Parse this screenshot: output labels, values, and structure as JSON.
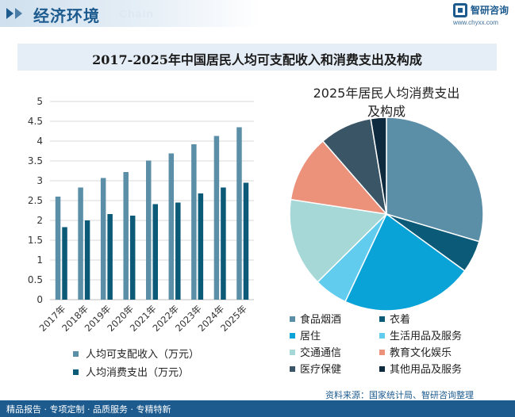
{
  "header": {
    "title": "经济环境",
    "subtitle": "Chain",
    "logo_name": "智研咨询",
    "logo_url": "www.chyxx.com"
  },
  "main_title": "2017-2025年中国居民人均可支配收入和消费支出及构成",
  "footer": {
    "slogan": "精品报告 · 专项定制 · 品质服务 · 专精特新",
    "source": "资料来源：国家统计局、智研咨询整理"
  },
  "colors": {
    "brand": "#1d5b8f",
    "income": "#5b8fa8",
    "expense": "#0b5a78"
  },
  "chart_data": [
    {
      "type": "bar",
      "title": "",
      "categories": [
        "2017年",
        "2018年",
        "2019年",
        "2020年",
        "2021年",
        "2022年",
        "2023年",
        "2024年",
        "2025年"
      ],
      "series": [
        {
          "name": "人均可支配收入（万元）",
          "color": "#5b8fa8",
          "values": [
            2.6,
            2.83,
            3.07,
            3.22,
            3.51,
            3.69,
            3.92,
            4.13,
            4.35
          ]
        },
        {
          "name": "人均消费支出（万元）",
          "color": "#0b5a78",
          "values": [
            1.83,
            2.0,
            2.16,
            2.12,
            2.41,
            2.45,
            2.68,
            2.83,
            2.95
          ]
        }
      ],
      "ylim": [
        0,
        5
      ],
      "yticks": [
        "0",
        "0.5",
        "1",
        "1.5",
        "2",
        "2.5",
        "3",
        "3.5",
        "4",
        "4.5",
        "5"
      ],
      "grid": true,
      "legend": "bottom"
    },
    {
      "type": "pie",
      "title": "2025年居民人均消费支出及构成",
      "slices": [
        {
          "name": "食品烟酒",
          "value": 29.6,
          "color": "#5b8fa8"
        },
        {
          "name": "衣着",
          "value": 5.4,
          "color": "#0b5a78"
        },
        {
          "name": "居住",
          "value": 22.0,
          "color": "#0aa3d8"
        },
        {
          "name": "生活用品及服务",
          "value": 5.6,
          "color": "#62ccee"
        },
        {
          "name": "交通通信",
          "value": 14.8,
          "color": "#a6d8d8"
        },
        {
          "name": "教育文化娱乐",
          "value": 11.2,
          "color": "#ec917a"
        },
        {
          "name": "医疗保健",
          "value": 8.8,
          "color": "#3a5565"
        },
        {
          "name": "其他用品及服务",
          "value": 2.6,
          "color": "#0e2a3f"
        }
      ],
      "legend": "bottom"
    }
  ]
}
